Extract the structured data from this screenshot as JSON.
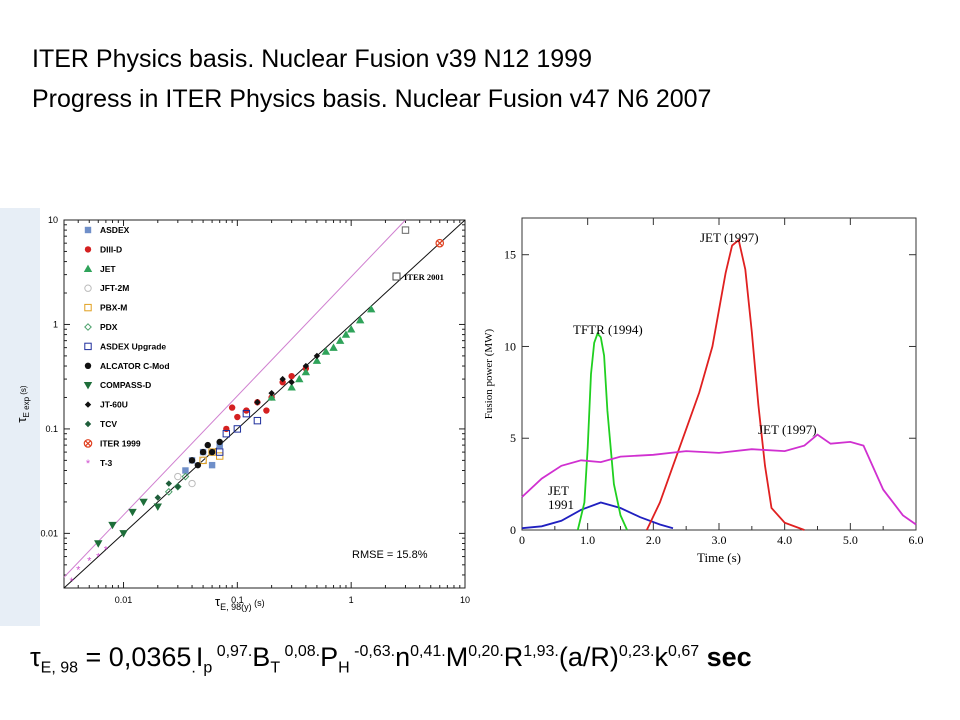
{
  "titles": {
    "line1": "ITER Physics basis. Nuclear Fusion v39 N12 1999",
    "line2": "Progress in ITER Physics basis. Nuclear Fusion v47 N6 2007"
  },
  "chart_data": [
    {
      "type": "scatter",
      "title": "",
      "xlabel": "τE, 98(y) (s)",
      "ylabel": "τE exp (s)",
      "x_scale": "log",
      "y_scale": "log",
      "xlim": [
        0.003,
        10
      ],
      "ylim": [
        0.003,
        10
      ],
      "x_ticks": [
        "0.01",
        "0.1",
        "1",
        "10"
      ],
      "y_ticks": [
        "0.01",
        "0.1",
        "1",
        "10"
      ],
      "annotations": [
        "ITER 2001",
        "RMSE = 15.8%"
      ],
      "legend": [
        {
          "name": "ASDEX",
          "color": "#6f8fc9",
          "marker": "square"
        },
        {
          "name": "DIII-D",
          "color": "#d42020",
          "marker": "circle"
        },
        {
          "name": "JET",
          "color": "#2fa35a",
          "marker": "triangle-up"
        },
        {
          "name": "JFT-2M",
          "color": "#bbbbbb",
          "marker": "circle-open"
        },
        {
          "name": "PBX-M",
          "color": "#e0a020",
          "marker": "square-open"
        },
        {
          "name": "PDX",
          "color": "#4aa06a",
          "marker": "diamond-open"
        },
        {
          "name": "ASDEX Upgrade",
          "color": "#1e2e9c",
          "marker": "square-open"
        },
        {
          "name": "ALCATOR C-Mod",
          "color": "#111111",
          "marker": "circle"
        },
        {
          "name": "COMPASS-D",
          "color": "#1e6e3a",
          "marker": "triangle-down"
        },
        {
          "name": "JT-60U",
          "color": "#111111",
          "marker": "diamond"
        },
        {
          "name": "TCV",
          "color": "#1e5e3a",
          "marker": "diamond"
        },
        {
          "name": "ITER 1999",
          "color": "#e04020",
          "marker": "circle-x"
        },
        {
          "name": "T-3",
          "color": "#d050d0",
          "marker": "star"
        }
      ],
      "series": [
        {
          "name": "ASDEX",
          "x": [
            0.04,
            0.05,
            0.06,
            0.07,
            0.035
          ],
          "y": [
            0.05,
            0.06,
            0.045,
            0.07,
            0.04
          ]
        },
        {
          "name": "DIII-D",
          "x": [
            0.08,
            0.1,
            0.12,
            0.15,
            0.2,
            0.25,
            0.3,
            0.4,
            0.09,
            0.18
          ],
          "y": [
            0.1,
            0.13,
            0.15,
            0.18,
            0.2,
            0.28,
            0.32,
            0.38,
            0.16,
            0.15
          ]
        },
        {
          "name": "JET",
          "x": [
            0.2,
            0.3,
            0.4,
            0.5,
            0.6,
            0.7,
            0.8,
            1.0,
            1.2,
            1.5,
            0.35,
            0.9
          ],
          "y": [
            0.2,
            0.25,
            0.35,
            0.45,
            0.55,
            0.6,
            0.7,
            0.9,
            1.1,
            1.4,
            0.3,
            0.8
          ]
        },
        {
          "name": "JFT-2M",
          "x": [
            0.03,
            0.04,
            0.05
          ],
          "y": [
            0.035,
            0.03,
            0.05
          ]
        },
        {
          "name": "PBX-M",
          "x": [
            0.05,
            0.06,
            0.07
          ],
          "y": [
            0.05,
            0.06,
            0.055
          ]
        },
        {
          "name": "PDX",
          "x": [
            0.025,
            0.03,
            0.035
          ],
          "y": [
            0.025,
            0.028,
            0.035
          ]
        },
        {
          "name": "ASDEX Upgrade",
          "x": [
            0.08,
            0.1,
            0.12,
            0.15,
            0.07
          ],
          "y": [
            0.09,
            0.1,
            0.14,
            0.12,
            0.06
          ]
        },
        {
          "name": "ALCATOR C-Mod",
          "x": [
            0.04,
            0.05,
            0.06,
            0.07,
            0.045,
            0.055
          ],
          "y": [
            0.05,
            0.06,
            0.06,
            0.075,
            0.045,
            0.07
          ]
        },
        {
          "name": "COMPASS-D",
          "x": [
            0.006,
            0.008,
            0.01,
            0.012,
            0.015,
            0.02
          ],
          "y": [
            0.008,
            0.012,
            0.01,
            0.016,
            0.02,
            0.018
          ]
        },
        {
          "name": "JT-60U",
          "x": [
            0.15,
            0.2,
            0.3,
            0.4,
            0.5,
            0.25
          ],
          "y": [
            0.18,
            0.22,
            0.28,
            0.4,
            0.5,
            0.3
          ]
        },
        {
          "name": "TCV",
          "x": [
            0.02,
            0.025,
            0.03
          ],
          "y": [
            0.022,
            0.03,
            0.028
          ]
        },
        {
          "name": "ITER 1999",
          "x": [
            6
          ],
          "y": [
            6
          ]
        },
        {
          "name": "T-3",
          "x": [
            0.0035,
            0.004,
            0.005,
            0.006,
            0.007
          ],
          "y": [
            0.0035,
            0.0045,
            0.0055,
            0.006,
            0.007
          ]
        }
      ],
      "iter_2001": {
        "x": 3,
        "y": 8
      }
    },
    {
      "type": "line",
      "title": "",
      "xlabel": "Time (s)",
      "ylabel": "Fusion power (MW)",
      "xlim": [
        0,
        6
      ],
      "ylim": [
        0,
        17
      ],
      "x_ticks": [
        "0",
        "1.0",
        "2.0",
        "3.0",
        "4.0",
        "5.0",
        "6.0"
      ],
      "y_ticks": [
        "0",
        "5",
        "10",
        "15"
      ],
      "series": [
        {
          "name": "JET 1991",
          "label": "JET\n1991",
          "color": "#2020c0",
          "x": [
            0,
            0.3,
            0.6,
            0.9,
            1.2,
            1.5,
            1.8,
            2.1,
            2.3
          ],
          "y": [
            0.1,
            0.2,
            0.5,
            1.1,
            1.5,
            1.2,
            0.7,
            0.3,
            0.1
          ]
        },
        {
          "name": "TFTR (1994)",
          "label": "TFTR (1994)",
          "color": "#20d020",
          "x": [
            0.85,
            0.95,
            1.0,
            1.05,
            1.1,
            1.15,
            1.2,
            1.25,
            1.3,
            1.4,
            1.5,
            1.6
          ],
          "y": [
            0,
            1.5,
            4.5,
            8.5,
            10.2,
            10.7,
            10.5,
            9.5,
            6.5,
            2.5,
            0.8,
            0
          ]
        },
        {
          "name": "JET (1997) peak",
          "label": "JET (1997)",
          "color": "#e02020",
          "x": [
            1.9,
            2.1,
            2.3,
            2.5,
            2.7,
            2.9,
            3.0,
            3.1,
            3.2,
            3.3,
            3.4,
            3.5,
            3.6,
            3.7,
            3.8,
            4.0,
            4.3
          ],
          "y": [
            0,
            1.5,
            3.5,
            5.5,
            7.5,
            10,
            12,
            14,
            15.5,
            15.8,
            14.2,
            10.8,
            6.8,
            3.5,
            1.2,
            0.4,
            0
          ]
        },
        {
          "name": "JET (1997) steady",
          "label": "JET (1997)",
          "color": "#d030d0",
          "x": [
            0,
            0.3,
            0.6,
            0.9,
            1.2,
            1.5,
            2.0,
            2.5,
            3.0,
            3.5,
            4.0,
            4.3,
            4.5,
            4.7,
            5.0,
            5.2,
            5.5,
            5.8,
            6.0
          ],
          "y": [
            1.8,
            2.8,
            3.5,
            3.8,
            3.7,
            4.0,
            4.1,
            4.3,
            4.2,
            4.4,
            4.3,
            4.6,
            5.2,
            4.7,
            4.8,
            4.6,
            2.2,
            0.8,
            0.3
          ]
        }
      ]
    }
  ],
  "formula": {
    "tau": "τ",
    "tau_sub": "E, 98",
    "lhs_eq": " = 0,0365",
    "dot1": ".",
    "Ip": "I",
    "Ip_sub": "p",
    "Ip_exp": " 0,97.",
    "BT": "B",
    "BT_sub": "T",
    "BT_exp": " 0,08.",
    "PH": "P",
    "PH_sub": "H",
    "PH_exp": " -0,63.",
    "n": "n",
    "n_exp": "0,41.",
    "M": "M",
    "M_exp": "0,20.",
    "R": "R",
    "R_exp": "1,93.",
    "aR": "(a/R)",
    "aR_exp": "0,23.",
    "k": "k",
    "k_exp": "0,67",
    "unit": " sec"
  }
}
